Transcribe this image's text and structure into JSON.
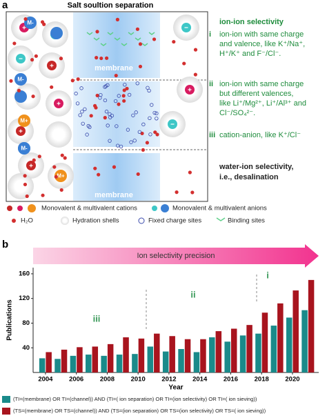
{
  "panel_a": {
    "label": "a",
    "title": "Salt soultion separation",
    "membrane_labels": [
      "membrane",
      "membrane"
    ],
    "ion_labels": {
      "cation": "M+",
      "anion": "M-"
    },
    "heading": "ion-ion selectivity",
    "items": [
      {
        "numeral": "i",
        "lines": [
          "ion-ion with same charge",
          "and valence, like K⁺/Na⁺,",
          "H⁺/K⁺ and F⁻/Cl⁻."
        ]
      },
      {
        "numeral": "ii",
        "lines": [
          "ion-ion with same charge",
          "but different valences,",
          "like Li⁺/Mg²⁺, Li⁺/Al³⁺ and",
          "Cl⁻/SO₄²⁻."
        ]
      },
      {
        "numeral": "iii",
        "lines": [
          "cation-anion, like K⁺/Cl⁻"
        ]
      }
    ],
    "water_lines": [
      "water-ion selectivity,",
      "i.e., desalination"
    ],
    "legend": [
      "Monovalent & multivalent cations",
      "Monovalent & multivalent anions",
      "H₂O",
      "Hydration shells",
      "Fixed charge sites",
      "Binding sites"
    ]
  },
  "chart_data": {
    "type": "bar",
    "panel_label": "b",
    "x_label": "Year",
    "y_label": "Publications",
    "annotations": {
      "arrow": "Ion selectivity precision",
      "regions": [
        "iii",
        "ii",
        "i"
      ]
    },
    "x": [
      2004,
      2005,
      2006,
      2007,
      2008,
      2009,
      2010,
      2011,
      2012,
      2013,
      2014,
      2015,
      2016,
      2017,
      2018,
      2019,
      2020,
      2021
    ],
    "xlim": [
      2003.2,
      2021.7
    ],
    "xticks": [
      2004,
      2006,
      2008,
      2010,
      2012,
      2014,
      2016,
      2018,
      2020
    ],
    "ylim": [
      0,
      170
    ],
    "yticks": [
      40,
      80,
      120,
      160
    ],
    "series": [
      {
        "name": "(TI=(membrane) OR TI=(channel)) AND (TI=( ion separation) OR TI=(ion selectivity) OR TI=( ion sieving))",
        "color": "#1a8a8a",
        "values": [
          23,
          22,
          27,
          29,
          27,
          29,
          30,
          42,
          34,
          38,
          33,
          57,
          50,
          60,
          63,
          76,
          89,
          101
        ]
      },
      {
        "name": "(TS=(membrane) OR TS=(channel)) AND (TS=(ion separation) OR TS=(ion selectivity) OR TS=( ion sieving))",
        "color": "#a8141e",
        "values": [
          33,
          37,
          41,
          42,
          46,
          57,
          55,
          63,
          59,
          54,
          54,
          67,
          71,
          77,
          97,
          112,
          133,
          150
        ]
      }
    ]
  }
}
